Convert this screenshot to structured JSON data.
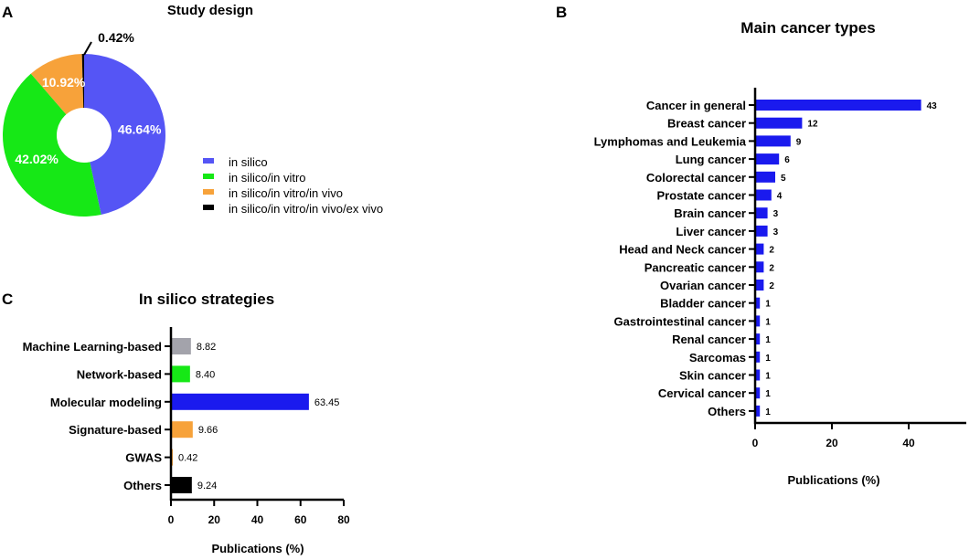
{
  "panels": {
    "a": "A",
    "b": "B",
    "c": "C"
  },
  "chart_data": [
    {
      "type": "pie",
      "title": "Study design",
      "donut": true,
      "slices": [
        {
          "label": "in silico",
          "value": 46.64,
          "value_label": "46.64%",
          "color": "#5555f5"
        },
        {
          "label": "in silico/in vitro",
          "value": 42.02,
          "value_label": "42.02%",
          "color": "#16e816"
        },
        {
          "label": "in silico/in vitro/in vivo",
          "value": 10.92,
          "value_label": "10.92%",
          "color": "#f7a23a"
        },
        {
          "label": "in silico/in vitro/in vivo/ex vivo",
          "value": 0.42,
          "value_label": "0.42%",
          "color": "#000000"
        }
      ],
      "legend_position": "right"
    },
    {
      "type": "bar",
      "orientation": "horizontal",
      "title": "Main cancer types",
      "categories": [
        "Cancer in general",
        "Breast cancer",
        "Lymphomas and Leukemia",
        "Lung cancer",
        "Colorectal cancer",
        "Prostate cancer",
        "Brain cancer",
        "Liver cancer",
        "Head and Neck cancer",
        "Pancreatic cancer",
        "Ovarian cancer",
        "Bladder cancer",
        "Gastrointestinal cancer",
        "Renal cancer",
        "Sarcomas",
        "Skin cancer",
        "Cervical cancer",
        "Others"
      ],
      "values": [
        43,
        12,
        9,
        6,
        5,
        4,
        3,
        3,
        2,
        2,
        2,
        1,
        1,
        1,
        1,
        1,
        1,
        1
      ],
      "value_labels": [
        "43",
        "12",
        "9",
        "6",
        "5",
        "4",
        "3",
        "3",
        "2",
        "2",
        "2",
        "1",
        "1",
        "1",
        "1",
        "1",
        "1",
        "1"
      ],
      "xlabel": "Publications (%)",
      "xlim": [
        0,
        55
      ],
      "xticks": [
        0,
        20,
        40
      ],
      "xtick_labels": [
        "0",
        "20",
        "40"
      ],
      "color": "#1a1aee"
    },
    {
      "type": "bar",
      "orientation": "horizontal",
      "title": "In silico strategies",
      "categories": [
        "Machine Learning-based",
        "Network-based",
        "Molecular modeling",
        "Signature-based",
        "GWAS",
        "Others"
      ],
      "values": [
        8.82,
        8.4,
        63.45,
        9.66,
        0.42,
        9.24
      ],
      "value_labels": [
        "8.82",
        "8.40",
        "63.45",
        "9.66",
        "0.42",
        "9.24"
      ],
      "colors": [
        "#a3a3ab",
        "#16e816",
        "#1a1aee",
        "#f7a23a",
        "#f7a23a",
        "#000000"
      ],
      "xlabel": "Publications (%)",
      "xlim": [
        0,
        80
      ],
      "xticks": [
        0,
        20,
        40,
        60,
        80
      ],
      "xtick_labels": [
        "0",
        "20",
        "40",
        "60",
        "80"
      ]
    }
  ]
}
